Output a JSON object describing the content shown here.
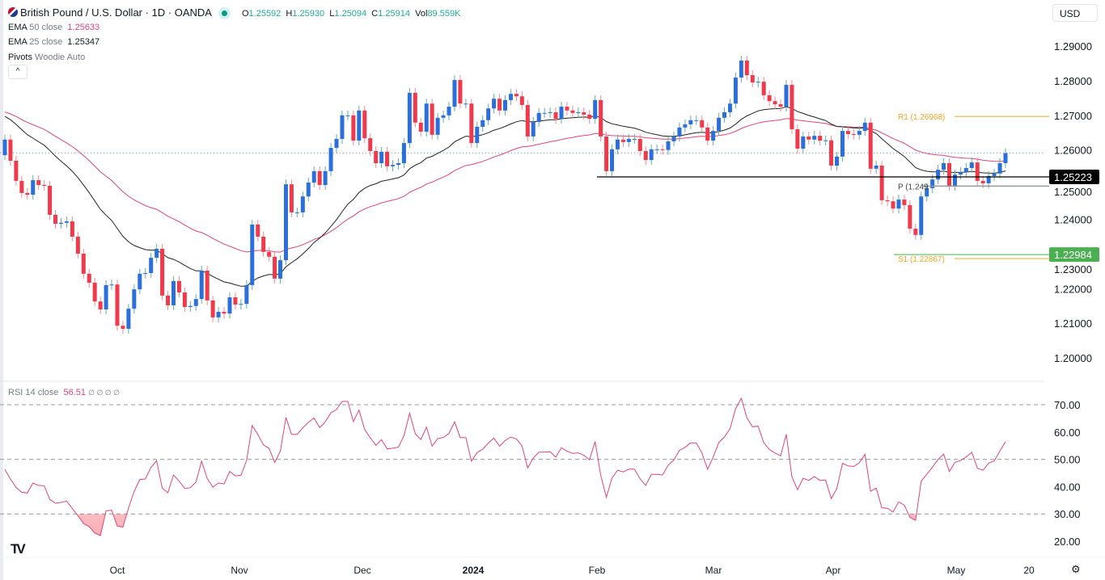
{
  "header": {
    "symbol": "British Pound / U.S. Dollar · 1D · OANDA",
    "ohlc": {
      "o_label": "O",
      "o": "1.25592",
      "h_label": "H",
      "h": "1.25930",
      "l_label": "L",
      "l": "1.25094",
      "c_label": "C",
      "c": "1.25914",
      "vol_label": "Vol",
      "vol": "89.559K"
    },
    "indicators": [
      {
        "name": "EMA",
        "params": "50 close",
        "value": "1.25633",
        "color": "#e0457b"
      },
      {
        "name": "EMA",
        "params": "25 close",
        "value": "1.25347",
        "color": "#131722"
      },
      {
        "name": "Pivots",
        "params": "Woodie Auto",
        "value": ""
      }
    ],
    "collapse_icon": "chevron-up-icon",
    "currency": "USD"
  },
  "rsi_legend": {
    "name": "RSI",
    "params": "14 close",
    "value": "56.51",
    "extras": "∅ ∅ ∅ ∅"
  },
  "colors": {
    "up": "#2a6fdb",
    "down": "#f0394b",
    "ema50": "#e0457b",
    "ema25": "#222222",
    "rsi": "#e0457b",
    "r1": "#f5a623",
    "s1": "#f5a623",
    "support_label": "#4caf50"
  },
  "chart_data": [
    {
      "type": "candlestick",
      "title": "British Pound / U.S. Dollar · 1D · OANDA",
      "ylim": [
        1.195,
        1.297
      ],
      "y_ticks": [
        "1.29000",
        "1.28000",
        "1.27000",
        "1.26000",
        "1.25000",
        "1.24000",
        "1.23000",
        "1.22000",
        "1.21000",
        "1.20000"
      ],
      "x_ticks": [
        "Oct",
        "Nov",
        "Dec",
        "2024",
        "Feb",
        "Mar",
        "Apr",
        "May",
        "20"
      ],
      "first_open": 1.2585,
      "closes": [
        1.263,
        1.2569,
        1.2511,
        1.2476,
        1.2471,
        1.2513,
        1.2499,
        1.2497,
        1.2413,
        1.2387,
        1.239,
        1.2394,
        1.235,
        1.2301,
        1.2243,
        1.2217,
        1.2163,
        1.214,
        1.221,
        1.2212,
        1.2093,
        1.2084,
        1.2142,
        1.2198,
        1.2243,
        1.2245,
        1.2289,
        1.2315,
        1.218,
        1.2152,
        1.2222,
        1.2189,
        1.2147,
        1.215,
        1.217,
        1.2252,
        1.2166,
        1.2117,
        1.2133,
        1.2128,
        1.2175,
        1.2154,
        1.2156,
        1.221,
        1.2385,
        1.235,
        1.2306,
        1.2292,
        1.2229,
        1.2282,
        1.2501,
        1.242,
        1.242,
        1.2466,
        1.2506,
        1.2539,
        1.2499,
        1.2539,
        1.2606,
        1.2632,
        1.27,
        1.27,
        1.2627,
        1.2714,
        1.2634,
        1.2597,
        1.2562,
        1.2595,
        1.2553,
        1.2557,
        1.2562,
        1.262,
        1.2765,
        1.2679,
        1.2653,
        1.2734,
        1.2644,
        1.2693,
        1.27,
        1.2725,
        1.2802,
        1.2734,
        1.2734,
        1.262,
        1.2667,
        1.2686,
        1.272,
        1.2748,
        1.2714,
        1.2744,
        1.2762,
        1.2755,
        1.273,
        1.2639,
        1.2681,
        1.2707,
        1.2707,
        1.2709,
        1.269,
        1.2725,
        1.2714,
        1.2707,
        1.2709,
        1.2702,
        1.269,
        1.2744,
        1.2639,
        1.2539,
        1.2602,
        1.263,
        1.2623,
        1.2632,
        1.2632,
        1.2597,
        1.2571,
        1.2602,
        1.2602,
        1.26,
        1.2625,
        1.2639,
        1.2665,
        1.2674,
        1.2686,
        1.2686,
        1.2665,
        1.2627,
        1.2655,
        1.2693,
        1.2709,
        1.2734,
        1.2809,
        1.2858,
        1.2816,
        1.2795,
        1.2797,
        1.2758,
        1.2741,
        1.2732,
        1.2725,
        1.2788,
        1.266,
        1.2604,
        1.2639,
        1.263,
        1.2641,
        1.2627,
        1.2628,
        1.2555,
        1.2581,
        1.2655,
        1.2646,
        1.2644,
        1.2655,
        1.2679,
        1.2546,
        1.2555,
        1.2455,
        1.2452,
        1.2431,
        1.2457,
        1.2441,
        1.2373,
        1.2355,
        1.2466,
        1.249,
        1.2515,
        1.2543,
        1.2562,
        1.2497,
        1.2529,
        1.2536,
        1.2548,
        1.2564,
        1.2511,
        1.2504,
        1.2525,
        1.2532,
        1.2562,
        1.2591
      ],
      "last_price": 1.25914,
      "levels": [
        {
          "label": "R1 (1.26968)",
          "value": 1.26968,
          "color": "#f5a623"
        },
        {
          "label": "P (1.249",
          "value": 1.2496,
          "color": "#9598a1"
        },
        {
          "label": "S1 (1.22867)",
          "value": 1.22867,
          "color": "#f5a623"
        }
      ],
      "horizontal_lines": [
        {
          "value": 1.25223,
          "label": "1.25223",
          "color": "#000000"
        },
        {
          "value": 1.22984,
          "label": "1.22984",
          "color": "#4caf50"
        }
      ]
    },
    {
      "type": "line",
      "title": "RSI 14 close",
      "ylim": [
        15,
        75
      ],
      "y_ticks": [
        "70.00",
        "60.00",
        "50.00",
        "40.00",
        "30.00",
        "20.00"
      ],
      "bands": [
        70,
        50,
        30
      ],
      "last_value": 56.51
    }
  ],
  "footer": {
    "settings_icon": "gear-icon"
  }
}
